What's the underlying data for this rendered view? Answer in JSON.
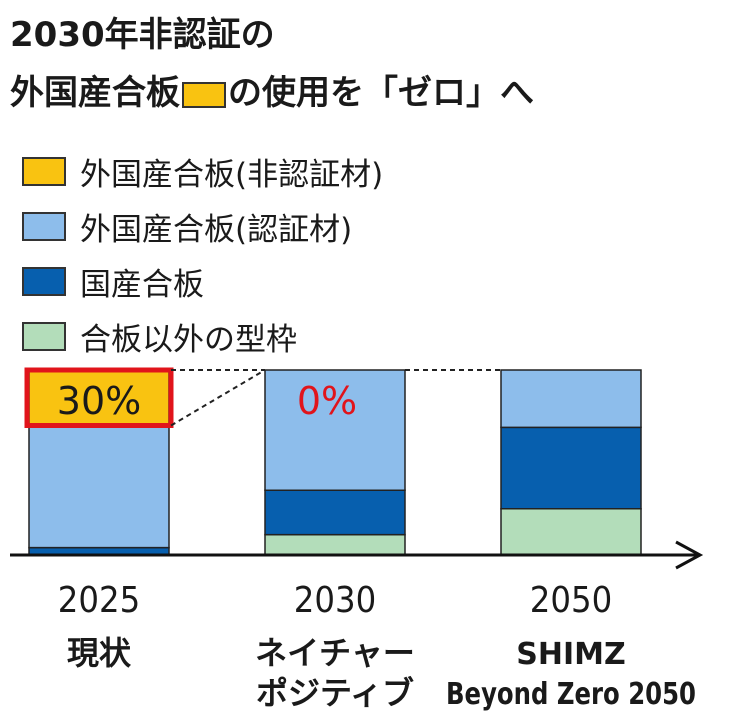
{
  "title": {
    "line1": "2030年非認証の",
    "line2_before": "外国産合板",
    "line2_after": "の使用を「ゼロ」へ"
  },
  "legend": [
    {
      "label": "外国産合板(非認証材)",
      "color": "#F9C311"
    },
    {
      "label": "外国産合板(認証材)",
      "color": "#8DBDEB"
    },
    {
      "label": "国産合板",
      "color": "#075FAE"
    },
    {
      "label": "合板以外の型枠",
      "color": "#B3DDBA"
    }
  ],
  "chart_data": {
    "type": "bar",
    "stacked": true,
    "percent_stacked": true,
    "categories": [
      "2025",
      "2030",
      "2050"
    ],
    "category_sublabels": [
      "現状",
      "ネイチャー\nポジティブ",
      "SHIMZ\nBeyond Zero 2050"
    ],
    "series": [
      {
        "name": "合板以外の型枠",
        "color": "#B3DDBA",
        "values": [
          0,
          11,
          25
        ]
      },
      {
        "name": "国産合板",
        "color": "#075FAE",
        "values": [
          4,
          24,
          44
        ]
      },
      {
        "name": "外国産合板(認証材)",
        "color": "#8DBDEB",
        "values": [
          66,
          65,
          31
        ]
      },
      {
        "name": "外国産合板(非認証材)",
        "color": "#F9C311",
        "values": [
          30,
          0,
          0
        ]
      }
    ],
    "annotations": [
      {
        "category": "2025",
        "text": "30%"
      },
      {
        "category": "2030",
        "text": "0%"
      }
    ],
    "ylim": [
      0,
      100
    ],
    "grid": false
  }
}
